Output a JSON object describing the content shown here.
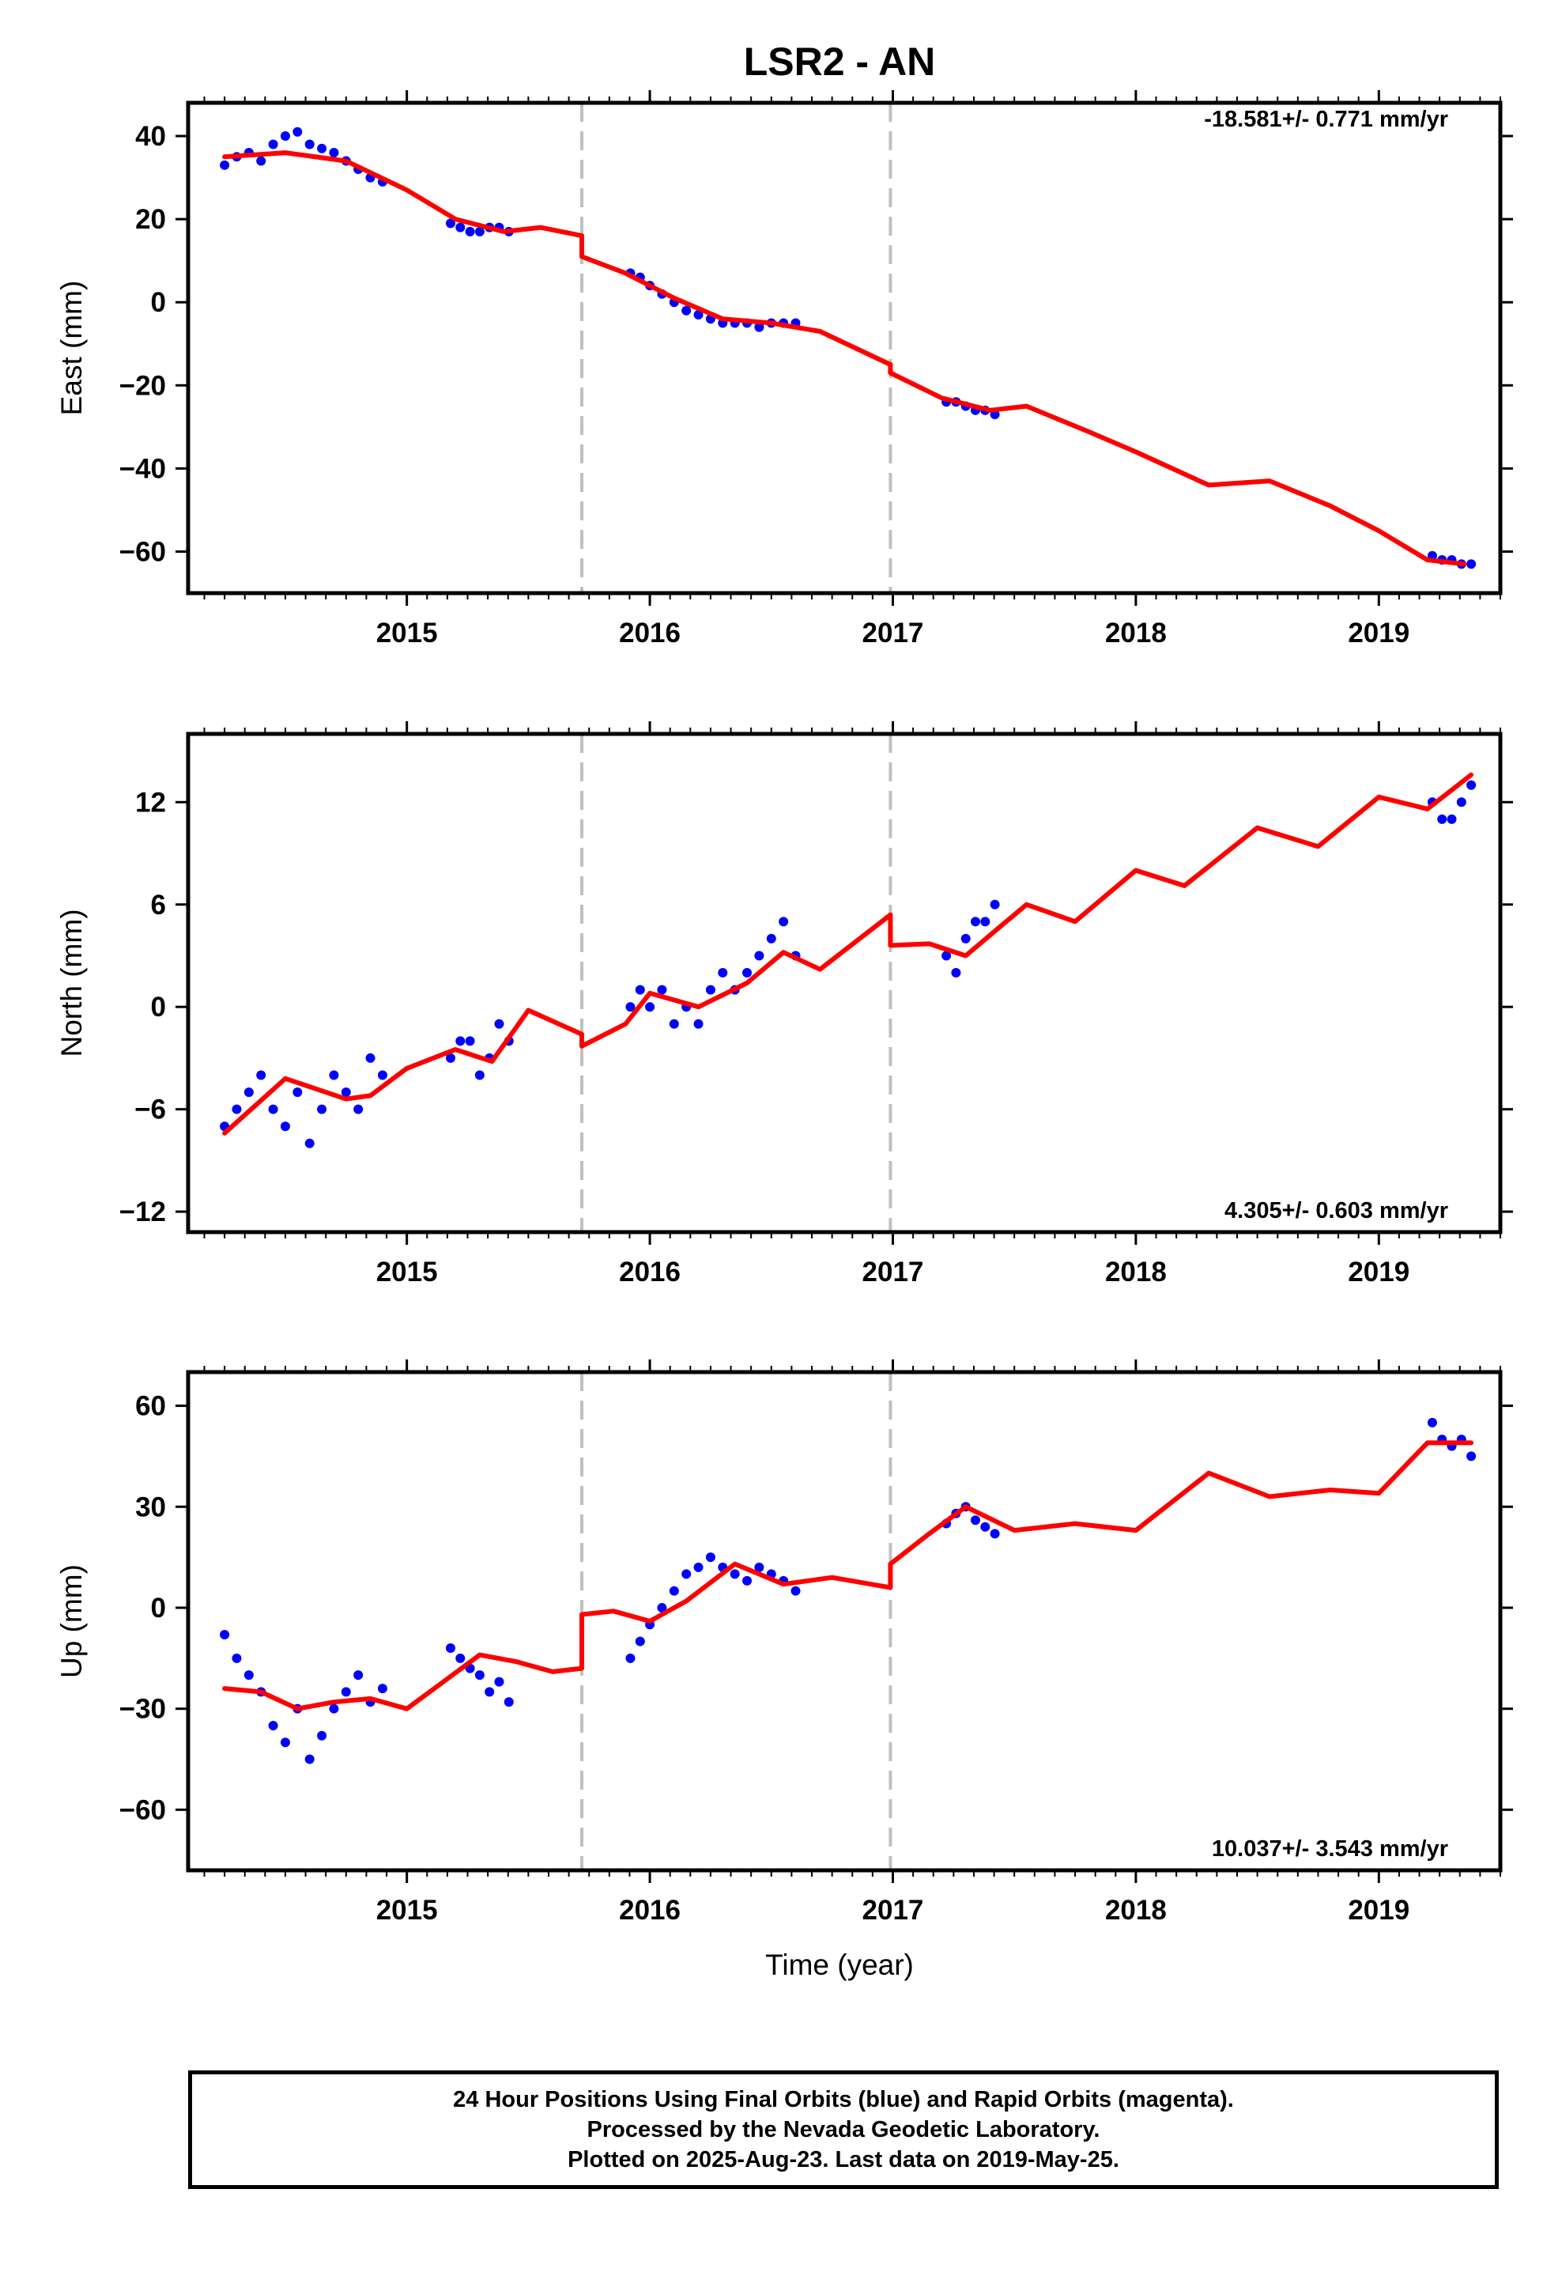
{
  "title": "LSR2 - AN",
  "colors": {
    "points": "#0000ff",
    "model": "#ff0000",
    "breaks": "#c0c0c0",
    "frame": "#000000"
  },
  "footer": {
    "line1": "24 Hour Positions Using Final Orbits (blue) and Rapid Orbits (magenta).",
    "line2": "Processed by the Nevada Geodetic Laboratory.",
    "line3": "Plotted on 2025-Aug-23. Last data on 2019-May-25."
  },
  "chart_data": [
    {
      "type": "scatter",
      "ylabel": "East (mm)",
      "xlabel": "",
      "xlim": [
        2014.1,
        2019.5
      ],
      "ylim": [
        -70,
        48
      ],
      "x_ticks": [
        2015,
        2016,
        2017,
        2018,
        2019
      ],
      "y_ticks": [
        40,
        20,
        0,
        -20,
        -40,
        -60
      ],
      "rate": "-18.581+/- 0.771 mm/yr",
      "rate_position": "top-right",
      "breaks": [
        2015.72,
        2016.99
      ],
      "series": [
        {
          "kind": "points",
          "x": [
            2014.25,
            2014.3,
            2014.35,
            2014.4,
            2014.45,
            2014.5,
            2014.55,
            2014.6,
            2014.65,
            2014.7,
            2014.75,
            2014.8,
            2014.85,
            2014.9,
            2015.18,
            2015.22,
            2015.26,
            2015.3,
            2015.34,
            2015.38,
            2015.42,
            2015.92,
            2015.96,
            2016.0,
            2016.05,
            2016.1,
            2016.15,
            2016.2,
            2016.25,
            2016.3,
            2016.35,
            2016.4,
            2016.45,
            2016.5,
            2016.55,
            2016.6,
            2017.22,
            2017.26,
            2017.3,
            2017.34,
            2017.38,
            2017.42,
            2019.22,
            2019.26,
            2019.3,
            2019.34,
            2019.38
          ],
          "y": [
            33,
            35,
            36,
            34,
            38,
            40,
            41,
            38,
            37,
            36,
            34,
            32,
            30,
            29,
            19,
            18,
            17,
            17,
            18,
            18,
            17,
            7,
            6,
            4,
            2,
            0,
            -2,
            -3,
            -4,
            -5,
            -5,
            -5,
            -6,
            -5,
            -5,
            -5,
            -24,
            -24,
            -25,
            -26,
            -26,
            -27,
            -61,
            -62,
            -62,
            -63,
            -63
          ]
        },
        {
          "kind": "model",
          "x": [
            2014.25,
            2014.5,
            2014.75,
            2015.0,
            2015.2,
            2015.4,
            2015.55,
            2015.72,
            2015.72,
            2015.9,
            2016.1,
            2016.3,
            2016.5,
            2016.7,
            2016.99,
            2016.99,
            2017.2,
            2017.4,
            2017.55,
            2017.8,
            2018.0,
            2018.3,
            2018.55,
            2018.8,
            2019.0,
            2019.2,
            2019.35
          ],
          "y": [
            35,
            36,
            34,
            27,
            20,
            17,
            18,
            16,
            11,
            7,
            1,
            -4,
            -5,
            -7,
            -15,
            -17,
            -23,
            -26,
            -25,
            -31,
            -36,
            -44,
            -43,
            -49,
            -55,
            -62,
            -63
          ]
        }
      ]
    },
    {
      "type": "scatter",
      "ylabel": "North (mm)",
      "xlabel": "",
      "xlim": [
        2014.1,
        2019.5
      ],
      "ylim": [
        -13.2,
        16
      ],
      "x_ticks": [
        2015,
        2016,
        2017,
        2018,
        2019
      ],
      "y_ticks": [
        12,
        6,
        0,
        -6,
        -12
      ],
      "rate": "4.305+/- 0.603 mm/yr",
      "rate_position": "bottom-right",
      "breaks": [
        2015.72,
        2016.99
      ],
      "series": [
        {
          "kind": "points",
          "x": [
            2014.25,
            2014.3,
            2014.35,
            2014.4,
            2014.45,
            2014.5,
            2014.55,
            2014.6,
            2014.65,
            2014.7,
            2014.75,
            2014.8,
            2014.85,
            2014.9,
            2015.18,
            2015.22,
            2015.26,
            2015.3,
            2015.34,
            2015.38,
            2015.42,
            2015.92,
            2015.96,
            2016.0,
            2016.05,
            2016.1,
            2016.15,
            2016.2,
            2016.25,
            2016.3,
            2016.35,
            2016.4,
            2016.45,
            2016.5,
            2016.55,
            2016.6,
            2017.22,
            2017.26,
            2017.3,
            2017.34,
            2017.38,
            2017.42,
            2019.22,
            2019.26,
            2019.3,
            2019.34,
            2019.38
          ],
          "y": [
            -7,
            -6,
            -5,
            -4,
            -6,
            -7,
            -5,
            -8,
            -6,
            -4,
            -5,
            -6,
            -3,
            -4,
            -3,
            -2,
            -2,
            -4,
            -3,
            -1,
            -2,
            0,
            1,
            0,
            1,
            -1,
            0,
            -1,
            1,
            2,
            1,
            2,
            3,
            4,
            5,
            3,
            3,
            2,
            4,
            5,
            5,
            6,
            12,
            11,
            11,
            12,
            13
          ]
        },
        {
          "kind": "model",
          "x": [
            2014.25,
            2014.5,
            2014.75,
            2014.85,
            2015.0,
            2015.2,
            2015.35,
            2015.5,
            2015.72,
            2015.72,
            2015.9,
            2016.0,
            2016.2,
            2016.4,
            2016.55,
            2016.7,
            2016.99,
            2016.99,
            2017.15,
            2017.3,
            2017.45,
            2017.55,
            2017.75,
            2018.0,
            2018.2,
            2018.5,
            2018.75,
            2019.0,
            2019.2,
            2019.38
          ],
          "y": [
            -7.4,
            -4.2,
            -5.4,
            -5.2,
            -3.6,
            -2.5,
            -3.2,
            -0.2,
            -1.6,
            -2.3,
            -1.0,
            0.8,
            0,
            1.4,
            3.2,
            2.2,
            5.4,
            3.6,
            3.7,
            3.0,
            4.8,
            6.0,
            5.0,
            8.0,
            7.1,
            10.5,
            9.4,
            12.3,
            11.6,
            13.6
          ]
        }
      ]
    },
    {
      "type": "scatter",
      "ylabel": "Up (mm)",
      "xlabel": "Time (year)",
      "xlim": [
        2014.1,
        2019.5
      ],
      "ylim": [
        -78,
        70
      ],
      "x_ticks": [
        2015,
        2016,
        2017,
        2018,
        2019
      ],
      "y_ticks": [
        60,
        30,
        0,
        -30,
        -60
      ],
      "rate": "10.037+/- 3.543 mm/yr",
      "rate_position": "bottom-right",
      "breaks": [
        2015.72,
        2016.99
      ],
      "series": [
        {
          "kind": "points",
          "x": [
            2014.25,
            2014.3,
            2014.35,
            2014.4,
            2014.45,
            2014.5,
            2014.55,
            2014.6,
            2014.65,
            2014.7,
            2014.75,
            2014.8,
            2014.85,
            2014.9,
            2015.18,
            2015.22,
            2015.26,
            2015.3,
            2015.34,
            2015.38,
            2015.42,
            2015.92,
            2015.96,
            2016.0,
            2016.05,
            2016.1,
            2016.15,
            2016.2,
            2016.25,
            2016.3,
            2016.35,
            2016.4,
            2016.45,
            2016.5,
            2016.55,
            2016.6,
            2017.22,
            2017.26,
            2017.3,
            2017.34,
            2017.38,
            2017.42,
            2019.22,
            2019.26,
            2019.3,
            2019.34,
            2019.38
          ],
          "y": [
            -8,
            -15,
            -20,
            -25,
            -35,
            -40,
            -30,
            -45,
            -38,
            -30,
            -25,
            -20,
            -28,
            -24,
            -12,
            -15,
            -18,
            -20,
            -25,
            -22,
            -28,
            -15,
            -10,
            -5,
            0,
            5,
            10,
            12,
            15,
            12,
            10,
            8,
            12,
            10,
            8,
            5,
            25,
            28,
            30,
            26,
            24,
            22,
            55,
            50,
            48,
            50,
            45
          ]
        },
        {
          "kind": "model",
          "x": [
            2014.25,
            2014.4,
            2014.55,
            2014.7,
            2014.85,
            2015.0,
            2015.15,
            2015.3,
            2015.45,
            2015.6,
            2015.72,
            2015.72,
            2015.85,
            2016.0,
            2016.15,
            2016.35,
            2016.55,
            2016.75,
            2016.99,
            2016.99,
            2017.15,
            2017.3,
            2017.5,
            2017.75,
            2018.0,
            2018.3,
            2018.55,
            2018.8,
            2019.0,
            2019.2,
            2019.38
          ],
          "y": [
            -24,
            -25,
            -30,
            -28,
            -27,
            -30,
            -22,
            -14,
            -16,
            -19,
            -18,
            -2,
            -1,
            -4,
            2,
            13,
            7,
            9,
            6,
            13,
            22,
            30,
            23,
            25,
            23,
            40,
            33,
            35,
            34,
            49,
            49
          ]
        }
      ]
    }
  ]
}
